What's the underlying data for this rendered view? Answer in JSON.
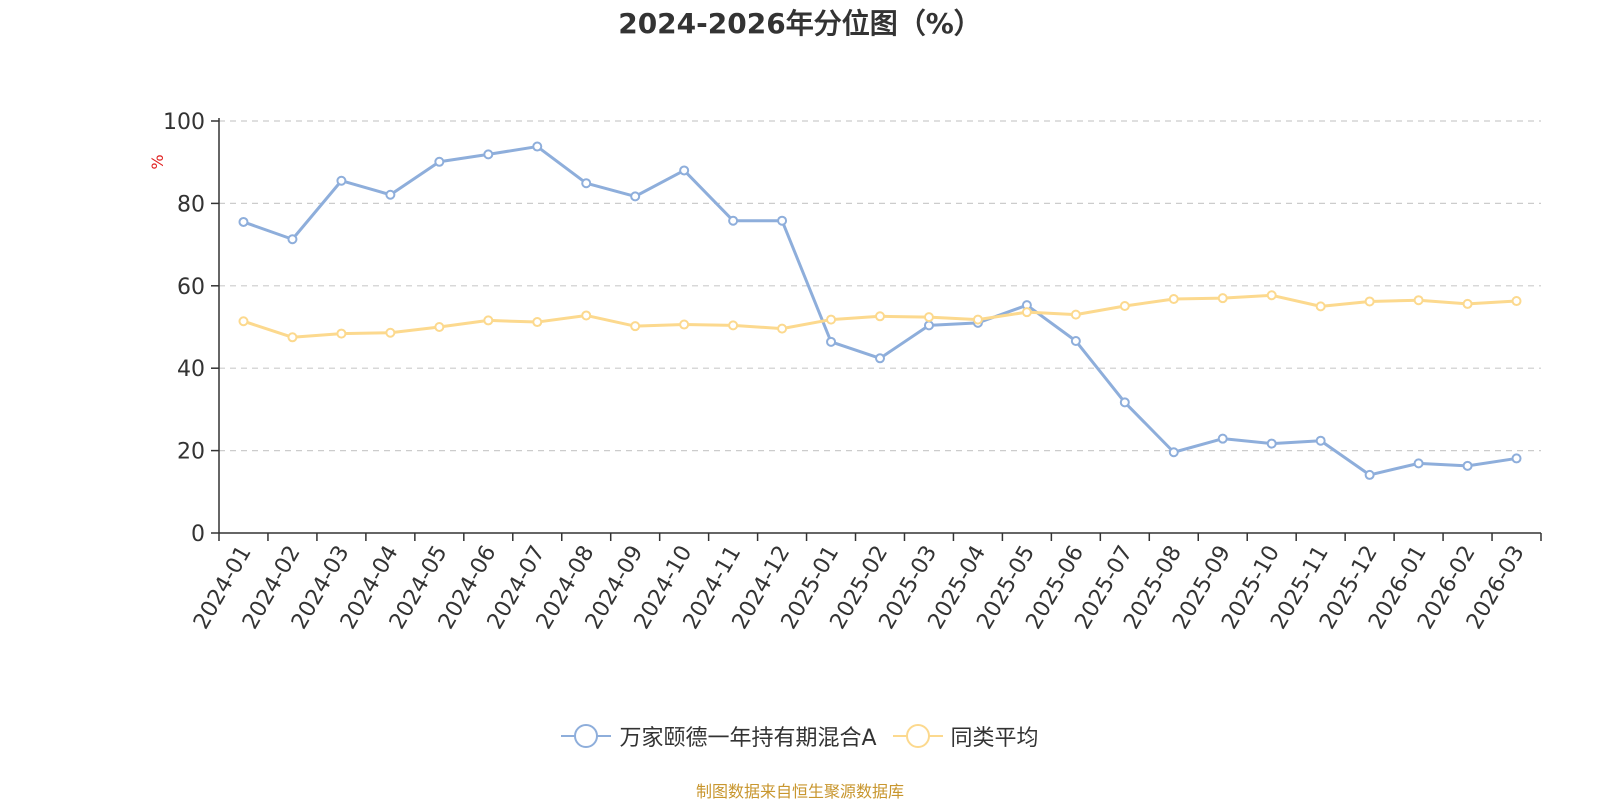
{
  "chart_data": {
    "type": "line",
    "title": "2024-2026年分位图（%）",
    "ylabel": "%",
    "xlabel": "",
    "ylim": [
      0,
      100
    ],
    "yticks": [
      0,
      20,
      40,
      60,
      80,
      100
    ],
    "grid": true,
    "legend_position": "bottom",
    "categories": [
      "2024-01",
      "2024-02",
      "2024-03",
      "2024-04",
      "2024-05",
      "2024-06",
      "2024-07",
      "2024-08",
      "2024-09",
      "2024-10",
      "2024-11",
      "2024-12",
      "2025-01",
      "2025-02",
      "2025-03",
      "2025-04",
      "2025-05",
      "2025-06",
      "2025-07",
      "2025-08",
      "2025-09",
      "2025-10",
      "2025-11",
      "2025-12",
      "2026-01",
      "2026-02",
      "2026-03"
    ],
    "series": [
      {
        "name": "万家颐德一年持有期混合A",
        "color": "#8eaedb",
        "values": [
          75.5,
          71.3,
          85.5,
          82.1,
          90.1,
          91.9,
          93.8,
          84.9,
          81.7,
          88.0,
          75.8,
          75.8,
          46.4,
          42.4,
          50.4,
          51.0,
          55.3,
          46.6,
          31.7,
          19.6,
          22.9,
          21.7,
          22.4,
          14.1,
          16.9,
          16.3,
          18.1
        ]
      },
      {
        "name": "同类平均",
        "color": "#fcd98e",
        "values": [
          51.4,
          47.5,
          48.4,
          48.6,
          50.0,
          51.6,
          51.2,
          52.8,
          50.2,
          50.6,
          50.4,
          49.6,
          51.8,
          52.6,
          52.4,
          51.8,
          53.6,
          53.0,
          55.1,
          56.8,
          57.0,
          57.7,
          55.0,
          56.2,
          56.5,
          55.6,
          56.3
        ]
      }
    ]
  },
  "source_note": "制图数据来自恒生聚源数据库"
}
